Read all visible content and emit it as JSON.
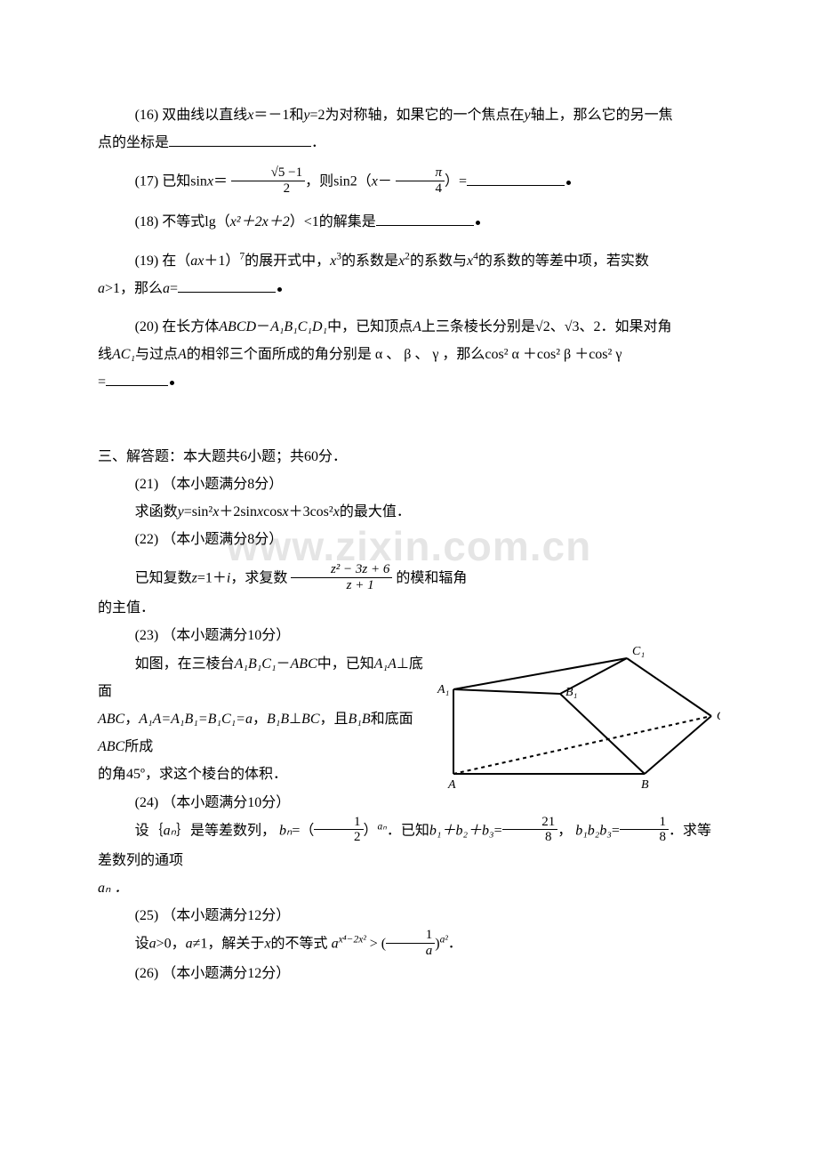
{
  "watermark": "www.zixin.com.cn",
  "q16": {
    "label": "(16)",
    "text_a": "双曲线以直线",
    "eq1": "x",
    "text_b": "＝－1和",
    "eq2": "y",
    "text_c": "=2为对称轴，如果它的一个焦点在",
    "eq3": "y",
    "text_d": "轴上，那么它的另一焦",
    "tail": "点的坐标是",
    "period": "．"
  },
  "q17": {
    "label": "(17)",
    "text_a": "已知sin",
    "x": "x",
    "eqs": "＝",
    "frac_num": "√5 −1",
    "frac_den": "2",
    "text_b": "，则sin2（",
    "x2": "x",
    "minus": "－",
    "pi_num": "π",
    "pi_den": "4",
    "text_c": "）="
  },
  "q18": {
    "label": "(18)",
    "text_a": "不等式lg（",
    "expr": "x²＋2x＋2",
    "text_b": "）<1的解集是"
  },
  "q19": {
    "label": "(19)",
    "text_a": "在（",
    "ax": "ax",
    "text_b": "＋1）",
    "pow7": "7",
    "text_c": "的展开式中，",
    "x3": "x",
    "p3": "3",
    "text_d": "的系数是",
    "x2": "x",
    "p2": "2",
    "text_e": "的系数与",
    "x4": "x",
    "p4": "4",
    "text_f": "的系数的等差中项，若实数",
    "line2a": "a",
    "gt1": ">1，那么",
    "a2": "a",
    "eq": "="
  },
  "q20": {
    "label": "(20)",
    "text_a": "在长方体",
    "abcd": "ABCD",
    "dash": "－",
    "a1b1c1d1": "A₁B₁C₁D₁",
    "text_b": "中，已知顶点",
    "A": "A",
    "text_c": "上三条棱长分别是",
    "r2": "√2",
    "comma": "、",
    "r3": "√3",
    "text_d": "、2．如果对角",
    "line2_a": "线",
    "ac1": "AC₁",
    "line2_b": "与过点",
    "A2": "A",
    "line2_c": "的相邻三个面所成的角分别是 α 、 β 、 γ ，那么cos² α ＋cos² β ＋cos² γ",
    "line3": "="
  },
  "section3_heading": "三、解答题：本大题共6小题；共60分．",
  "q21": {
    "label": "(21)",
    "title": "（本小题满分8分）",
    "body_a": "求函数",
    "fn": "y",
    "body_b": "=sin²",
    "x": "x",
    "body_c": "＋2sin",
    "body_d": "cos",
    "body_e": "＋3cos²",
    "body_f": "的最大值．"
  },
  "q22": {
    "label": "(22)",
    "title": "（本小题满分8分）",
    "body_a": "已知复数",
    "z": "z",
    "body_b": "=1＋",
    "i": "i",
    "body_c": "，求复数",
    "num": "z² − 3z + 6",
    "den": "z + 1",
    "body_d": "的模和辐角",
    "body_e": "的主值．"
  },
  "q23": {
    "label": "(23)",
    "title": "（本小题满分10分）",
    "l1_a": "如图，在三棱台",
    "abc1": "A₁B₁C₁",
    "dash": "－",
    "abc": "ABC",
    "l1_b": "中，已知",
    "aa1": "A₁A",
    "l1_c": "⊥底面",
    "l2_a": "ABC",
    "comma": "，",
    "eq1": "A₁A=A₁B₁=B₁C₁=a",
    "bb1": "B₁B",
    "perp": "⊥",
    "bc": "BC",
    "l2_b": "，且",
    "bb1_2": "B₁B",
    "l2_c": "和底面",
    "abc2": "ABC",
    "l2_d": "所成",
    "l3": "的角45º，求这个棱台的体积．"
  },
  "q24": {
    "label": "(24)",
    "title": "（本小题满分10分）",
    "l1_a": "设｛",
    "an": "aₙ",
    "l1_b": "｝是等差数列， ",
    "bn": "bₙ",
    "eq": "=（",
    "half_num": "1",
    "half_den": "2",
    "pow": "）",
    "exp": "aₙ",
    "l1_c": "．已知",
    "sum": "b₁＋b₂＋b₃",
    "eq2": "=",
    "f21_num": "21",
    "f21_den": "8",
    "l1_d": "， ",
    "prod": "b₁b₂b₃",
    "eq3": "=",
    "f18_num": "1",
    "f18_den": "8",
    "l1_e": "．求等差数列的通项",
    "l2": "aₙ ．"
  },
  "q25": {
    "label": "(25)",
    "title": "（本小题满分12分）",
    "l1_a": "设",
    "a": "a",
    "l1_b": ">0，",
    "a2": "a",
    "neq": "≠1，解关于",
    "x": "x",
    "l1_c": "的不等式",
    "base_a": "a",
    "exp_l": "x⁴−2x²",
    "gt": " > (",
    "inv_num": "1",
    "inv_den": "a",
    "close": ")",
    "exp_r": "a²",
    "period": "．"
  },
  "q26": {
    "label": "(26)",
    "title": "（本小题满分12分）"
  },
  "figure_labels": {
    "A": "A",
    "B": "B",
    "C": "C",
    "A1": "A₁",
    "B1": "B₁",
    "C1": "C₁"
  },
  "figure_style": {
    "stroke": "#000000",
    "stroke_width": 2,
    "dash": "4 4",
    "font_size": 14
  }
}
